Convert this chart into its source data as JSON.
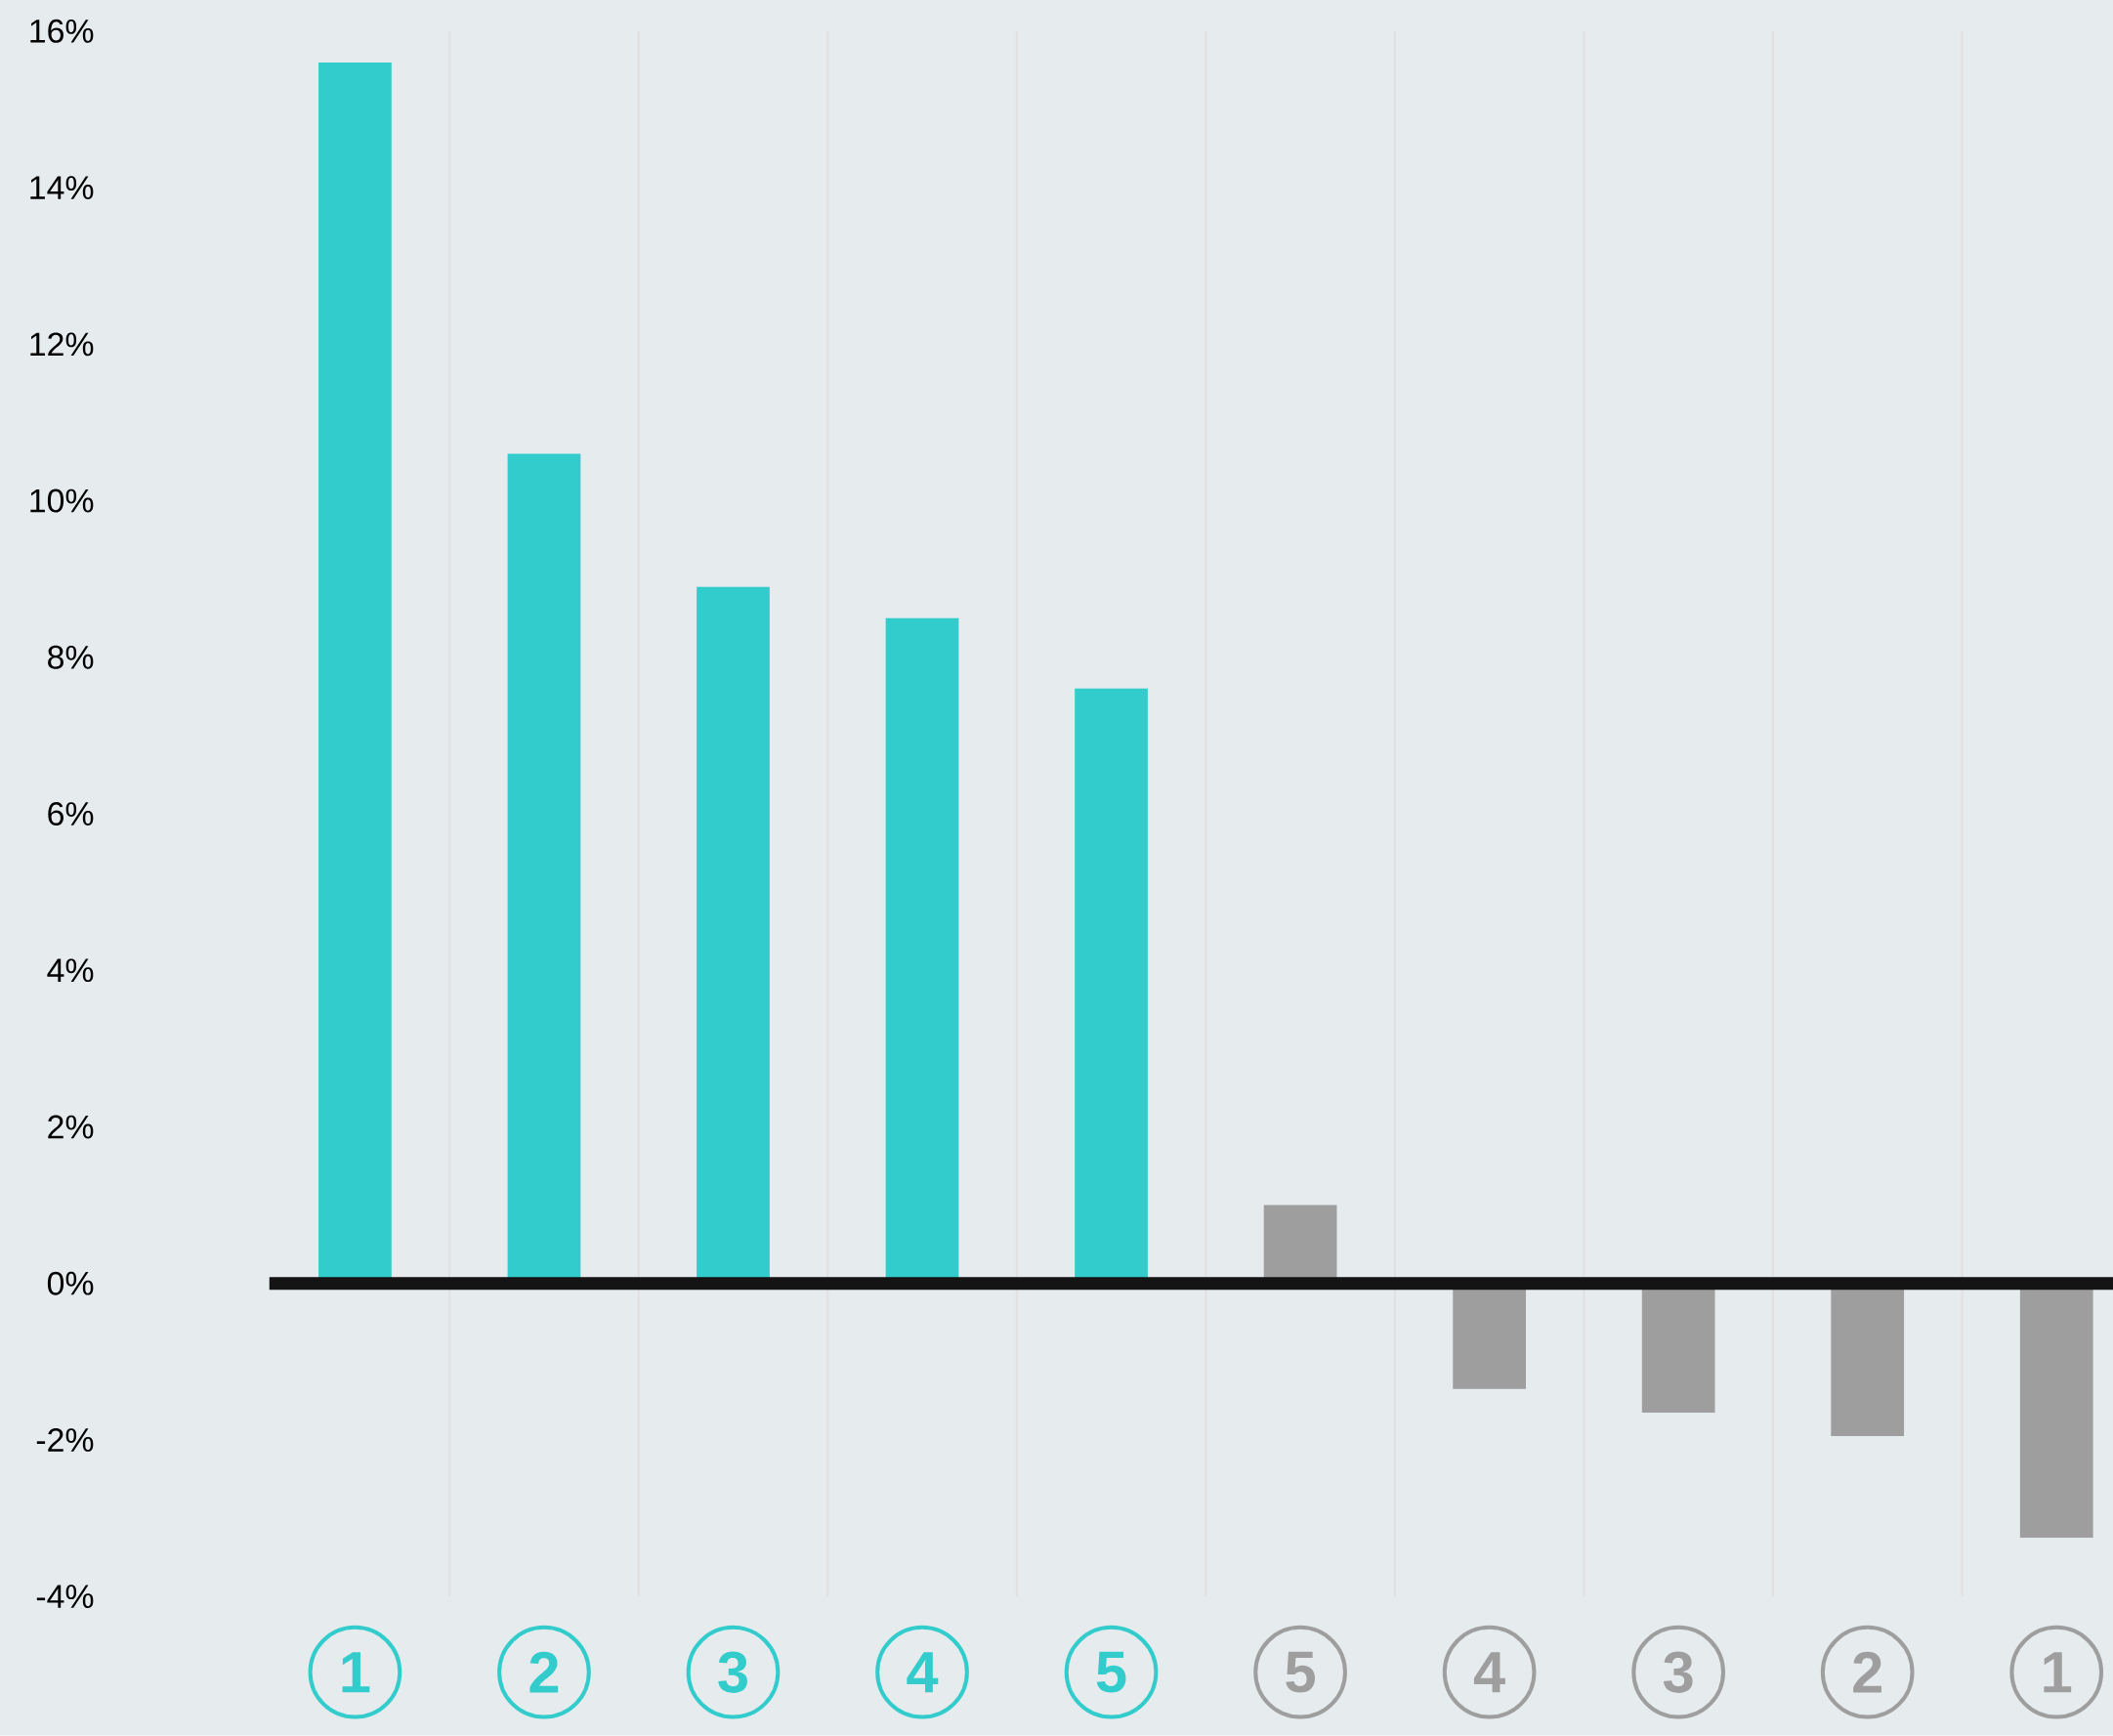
{
  "chart_data": {
    "type": "bar",
    "categories": [
      "1",
      "2",
      "3",
      "4",
      "5",
      "5",
      "4",
      "3",
      "2",
      "1"
    ],
    "values": [
      15.6,
      10.6,
      8.9,
      8.5,
      7.6,
      1.0,
      -1.35,
      -1.65,
      -1.95,
      -3.25
    ],
    "colors": [
      "#33cccc",
      "#33cccc",
      "#33cccc",
      "#33cccc",
      "#33cccc",
      "#9e9e9e",
      "#9e9e9e",
      "#9e9e9e",
      "#9e9e9e",
      "#9e9e9e"
    ],
    "ylim": [
      -4,
      16
    ],
    "yticks": [
      {
        "value": -4,
        "label": "-4%"
      },
      {
        "value": -2,
        "label": "-2%"
      },
      {
        "value": 0,
        "label": "0%"
      },
      {
        "value": 2,
        "label": "2%"
      },
      {
        "value": 4,
        "label": "4%"
      },
      {
        "value": 6,
        "label": "6%"
      },
      {
        "value": 8,
        "label": "8%"
      },
      {
        "value": 10,
        "label": "10%"
      },
      {
        "value": 12,
        "label": "12%"
      },
      {
        "value": 14,
        "label": "14%"
      },
      {
        "value": 16,
        "label": "16%"
      }
    ],
    "grid": "x"
  }
}
